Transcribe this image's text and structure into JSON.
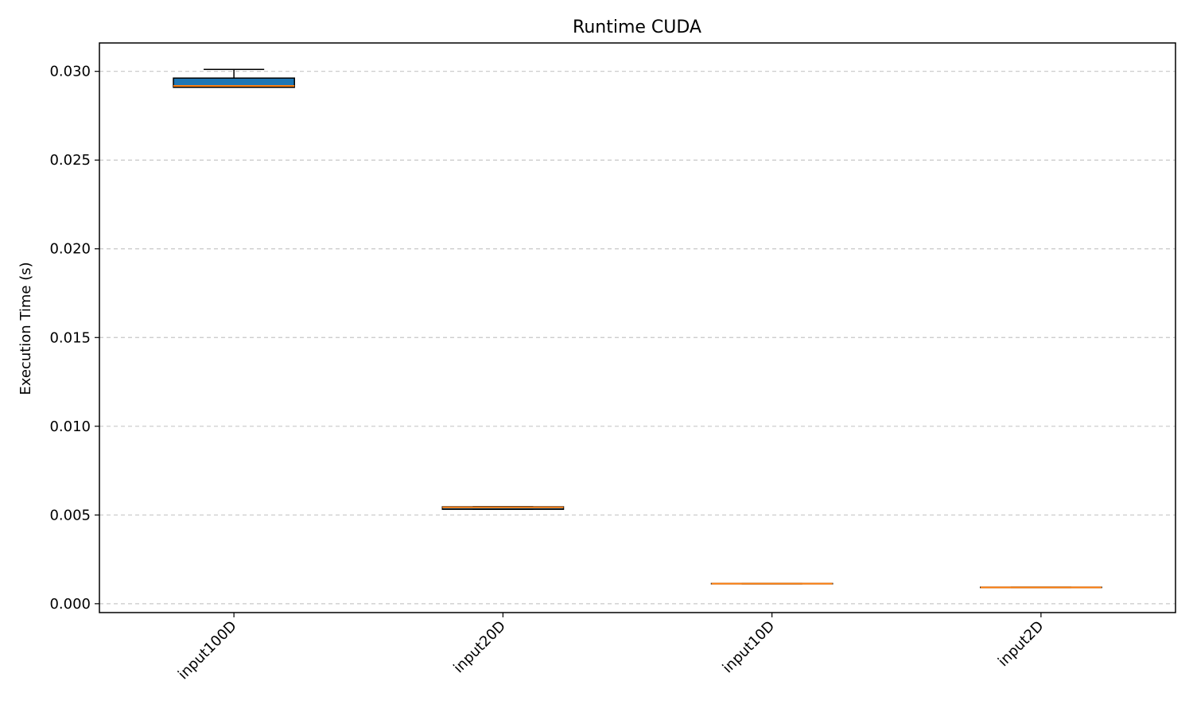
{
  "chart_data": {
    "type": "box",
    "title": "Runtime CUDA",
    "xlabel": "",
    "ylabel": "Execution Time (s)",
    "ylim": [
      -0.0005,
      0.0316
    ],
    "yticks": [
      0.0,
      0.005,
      0.01,
      0.015,
      0.02,
      0.025,
      0.03
    ],
    "ytick_labels": [
      "0.000",
      "0.005",
      "0.010",
      "0.015",
      "0.020",
      "0.025",
      "0.030"
    ],
    "grid": "y dashed",
    "categories": [
      "input100D",
      "input20D",
      "input10D",
      "input2D"
    ],
    "boxes": [
      {
        "category": "input100D",
        "whisker_low": 0.0291,
        "q1": 0.0291,
        "median": 0.02918,
        "q3": 0.02962,
        "whisker_high": 0.03011
      },
      {
        "category": "input20D",
        "whisker_low": 0.00532,
        "q1": 0.00532,
        "median": 0.00543,
        "q3": 0.00546,
        "whisker_high": 0.00546
      },
      {
        "category": "input10D",
        "whisker_low": 0.00112,
        "q1": 0.00112,
        "median": 0.00113,
        "q3": 0.00114,
        "whisker_high": 0.00114
      },
      {
        "category": "input2D",
        "whisker_low": 0.00091,
        "q1": 0.00091,
        "median": 0.00092,
        "q3": 0.00093,
        "whisker_high": 0.00093
      }
    ],
    "colors": {
      "box_fill": "#1f77b4",
      "median": "#ff7f0e",
      "edge": "#000000",
      "grid": "#c8c8c8"
    }
  }
}
